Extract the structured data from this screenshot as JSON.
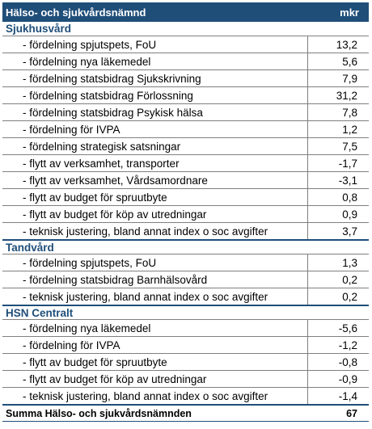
{
  "header": {
    "title": "Hälso- och sjukvårdsnämnd",
    "unit": "mkr"
  },
  "sections": [
    {
      "title": "Sjukhusvård",
      "rows": [
        {
          "label": "- fördelning spjutspets, FoU",
          "value": "13,2"
        },
        {
          "label": "- fördelning nya läkemedel",
          "value": "5,6"
        },
        {
          "label": "- fördelning statsbidrag Sjukskrivning",
          "value": "7,9"
        },
        {
          "label": "- fördelning statsbidrag Förlossning",
          "value": "31,2"
        },
        {
          "label": "- fördelning statsbidrag Psykisk hälsa",
          "value": "7,8"
        },
        {
          "label": "- fördelning  för IVPA",
          "value": "1,2"
        },
        {
          "label": "- fördelning strategisk satsningar",
          "value": "7,5"
        },
        {
          "label": "- flytt av verksamhet, transporter",
          "value": "-1,7"
        },
        {
          "label": "- flytt av verksamhet, Vårdsamordnare",
          "value": "-3,1"
        },
        {
          "label": "- flytt av budget för spruutbyte",
          "value": "0,8"
        },
        {
          "label": "- flytt av budget för köp av utredningar",
          "value": "0,9"
        },
        {
          "label": "- teknisk justering, bland annat index o soc avgifter",
          "value": "3,7"
        }
      ]
    },
    {
      "title": "Tandvård",
      "rows": [
        {
          "label": "- fördelning spjutspets, FoU",
          "value": "1,3"
        },
        {
          "label": "- fördelning statsbidrag Barnhälsovård",
          "value": "0,2"
        },
        {
          "label": "- teknisk justering, bland annat index o soc avgifter",
          "value": "0,2"
        }
      ]
    },
    {
      "title": "HSN Centralt",
      "rows": [
        {
          "label": "- fördelning nya läkemedel",
          "value": "-5,6"
        },
        {
          "label": "- fördelning  för IVPA",
          "value": "-1,2"
        },
        {
          "label": "- flytt av budget för spruutbyte",
          "value": "-0,8"
        },
        {
          "label": "- flytt av budget för köp av utredningar",
          "value": "-0,9"
        },
        {
          "label": " - teknisk justering, bland annat index o soc avgifter",
          "value": "-1,4"
        }
      ]
    }
  ],
  "total": {
    "label": "Summa Hälso- och sjukvårdsnämnden",
    "value": "67"
  },
  "colors": {
    "header_bg": "#1f4e79",
    "section_text": "#1f4e79",
    "grid": "#7f7f7f"
  }
}
